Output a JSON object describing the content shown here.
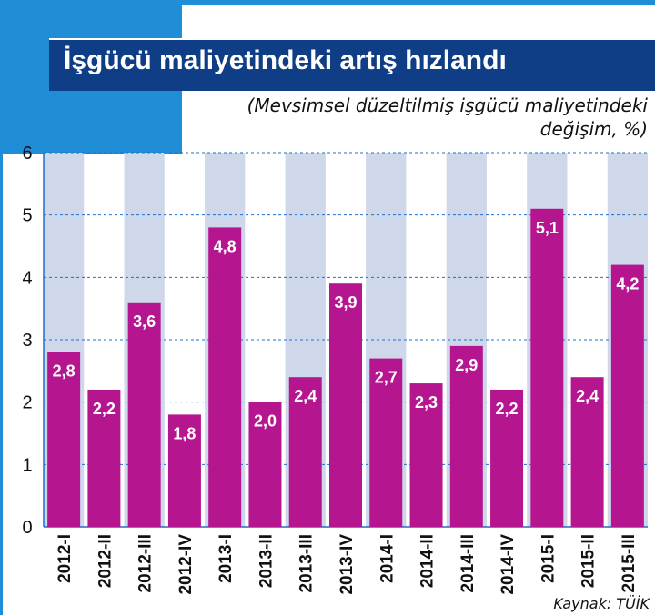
{
  "chart_data": {
    "type": "bar",
    "title": "İşgücü maliyetindeki artış hızlandı",
    "subtitle_line1": "(Mevsimsel düzeltilmiş işgücü maliyetindeki",
    "subtitle_line2": "değişim, %)",
    "categories": [
      "2012-I",
      "2012-II",
      "2012-III",
      "2012-IV",
      "2013-I",
      "2013-II",
      "2013-III",
      "2013-IV",
      "2014-I",
      "2014-II",
      "2014-III",
      "2014-IV",
      "2015-I",
      "2015-II",
      "2015-III"
    ],
    "values": [
      2.8,
      2.2,
      3.6,
      1.8,
      4.8,
      2.0,
      2.4,
      3.9,
      2.7,
      2.3,
      2.9,
      2.2,
      5.1,
      2.4,
      4.2
    ],
    "value_labels": [
      "2,8",
      "2,2",
      "3,6",
      "1,8",
      "4,8",
      "2,0",
      "2,4",
      "3,9",
      "2,7",
      "2,3",
      "2,9",
      "2,2",
      "5,1",
      "2,4",
      "4,2"
    ],
    "y_ticks": [
      "0",
      "1",
      "2",
      "3",
      "4",
      "5",
      "6"
    ],
    "ylim": [
      0,
      6
    ],
    "grid": true,
    "bar_color": "#b5168f",
    "band_color": "#cfd8ea",
    "source": "Kaynak: TÜİK"
  }
}
